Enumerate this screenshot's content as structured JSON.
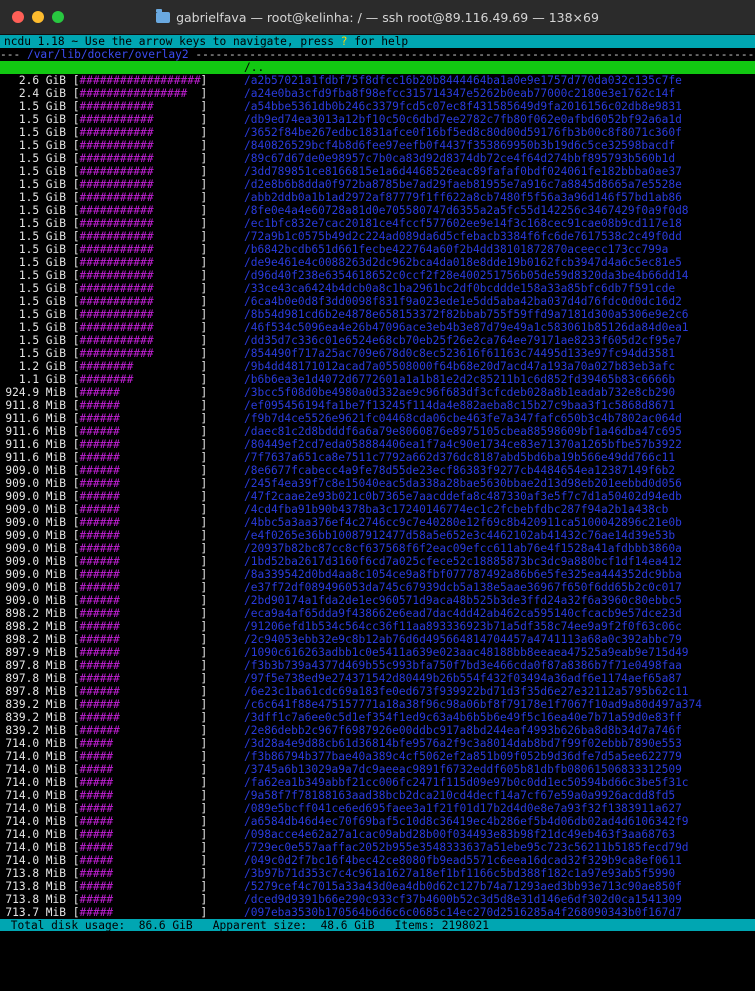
{
  "window": {
    "title": "gabrielfava — root@kelinha: / — ssh root@89.116.49.69 — 138×69"
  },
  "header": {
    "prefix": "ncdu 1.18 ~ Use the arrow keys to navigate, press ",
    "help_key": "?",
    "suffix": " for help"
  },
  "pathline": {
    "prefix": "--- ",
    "path": "/var/lib/docker/overlay2",
    "suffix": " ---------------------------------------------------------------------------------------------------------------"
  },
  "parent_dir": "/..",
  "entries": [
    {
      "size": "2.6 GiB",
      "bar": "##################",
      "name": "/a2b57021a1fdbf75f8dfcc16b20b8444464ba1a0e9e1757d770da032c135c7fe"
    },
    {
      "size": "2.4 GiB",
      "bar": "################ ",
      "name": "/a24e0ba3cfd9fba8f98efcc315714347e5262b0eab77000c2180e3e1762c14f"
    },
    {
      "size": "1.5 GiB",
      "bar": "###########",
      "name": "/a54bbe5361db0b246c3379fcd5c07ec8f431585649d9fa2016156c02db8e9831"
    },
    {
      "size": "1.5 GiB",
      "bar": "###########",
      "name": "/db9ed74ea3013a12bf10c50c6dbd7ee2782c7fb80f062e0afbd6052bf92a6a1d"
    },
    {
      "size": "1.5 GiB",
      "bar": "###########",
      "name": "/3652f84be267edbc1831afce0f16bf5ed8c80d00d59176fb3b00c8f8071c360f"
    },
    {
      "size": "1.5 GiB",
      "bar": "###########",
      "name": "/840826529bcf4b8d6fee97eefb0f4437f353869950b3b19d6c5ce32598bacdf"
    },
    {
      "size": "1.5 GiB",
      "bar": "###########",
      "name": "/89c67d67de0e98957c7b0ca83d92d8374db72ce4f64d274bbf895793b560b1d"
    },
    {
      "size": "1.5 GiB",
      "bar": "###########",
      "name": "/3dd789851ce8166815e1a6d4468526eac89fafaf0bdf024061fe182bbba0ae37"
    },
    {
      "size": "1.5 GiB",
      "bar": "###########",
      "name": "/d2e8b6b8dda0f972ba8785be7ad29faeb81955e7a916c7a8845d8665a7e5528e"
    },
    {
      "size": "1.5 GiB",
      "bar": "###########",
      "name": "/abb2ddb0a1b1ad2972af87779f1ff622a8cb7480f5f56a3a96d146f57bd1ab86"
    },
    {
      "size": "1.5 GiB",
      "bar": "###########",
      "name": "/8fe0e4a4e60728a81d0e705580747d6355a2a5fc55d142256c3467429f0a9f0d8"
    },
    {
      "size": "1.5 GiB",
      "bar": "###########",
      "name": "/ec1bfc832e7cac20181ce4fccf577602ee9e14f3c168cec91cae08b9cd117e18"
    },
    {
      "size": "1.5 GiB",
      "bar": "###########",
      "name": "/72a9b1c0575b49d2c224ad089da6d5cfebacb3384f6fc6de7617538c2c49f0dd"
    },
    {
      "size": "1.5 GiB",
      "bar": "###########",
      "name": "/b6842bcdb651d661fecbe422764a60f2b4dd38101872870aceecc173cc799a"
    },
    {
      "size": "1.5 GiB",
      "bar": "###########",
      "name": "/de9e461e4c0088263d2dc962bca4da018e8dde19b0162fcb3947d4a6c5ec81e5"
    },
    {
      "size": "1.5 GiB",
      "bar": "###########",
      "name": "/d96d40f238e6354618652c0ccf2f28e400251756b05de59d8320da3be4b66dd14"
    },
    {
      "size": "1.5 GiB",
      "bar": "###########",
      "name": "/33ce43ca6424b4dcb0a8c1ba2961bc2df0bcddde158a33a85bfc6db7f591cde"
    },
    {
      "size": "1.5 GiB",
      "bar": "###########",
      "name": "/6ca4b0e0d8f3dd0098f831f9a023ede1e5dd5aba42ba037d4d76fdc0d0dc16d2"
    },
    {
      "size": "1.5 GiB",
      "bar": "###########",
      "name": "/8b54d981cd6b2e4878e658153372f82bbab755f59ffd9a7181d300a5306e9e2c6"
    },
    {
      "size": "1.5 GiB",
      "bar": "###########",
      "name": "/46f534c5096ea4e26b47096ace3eb4b3e87d79e49a1c583061b85126da84d0ea1"
    },
    {
      "size": "1.5 GiB",
      "bar": "###########",
      "name": "/dd35d7c336c01e6524e68cb70eb25f26e2ca764ee79171ae8233f605d2cf95e7"
    },
    {
      "size": "1.5 GiB",
      "bar": "###########",
      "name": "/854490f717a25ac709e678d0c8ec523616f61163c74495d133e97fc94dd3581"
    },
    {
      "size": "1.2 GiB",
      "bar": "########",
      "name": "/9b4dd48171012acad7a05508000f64b68e20d7acd47a193a70a027b83eb3afc"
    },
    {
      "size": "1.1 GiB",
      "bar": "########",
      "name": "/b6b6ea3e1d4072d6772601a1a1b81e2d2c85211b1c6d852fd39465b83c6666b"
    },
    {
      "size": "924.9 MiB",
      "bar": "######",
      "name": "/3bcc5f08d0be4980a0d332ae9c96f683df3cfcdeb028a8b1eadab732e8cb290"
    },
    {
      "size": "911.8 MiB",
      "bar": "######",
      "name": "/ef095456194fa1be7f13245f114da4e882aeba8c15b27c9baa3f1c5868d8671"
    },
    {
      "size": "911.6 MiB",
      "bar": "######",
      "name": "/f9b7d4ce5526e9621fc04468cda06cbe463fe7a347fafc650b3c4b7802ac064d"
    },
    {
      "size": "911.6 MiB",
      "bar": "######",
      "name": "/daec81c2d8bdddf6a6a79e8060876e8975105cbea88598609bf1a46dba47c695"
    },
    {
      "size": "911.6 MiB",
      "bar": "######",
      "name": "/80449ef2cd7eda058884406ea1f7a4c90e1734ce83e71370a1265bfbe57b3922"
    },
    {
      "size": "911.6 MiB",
      "bar": "######",
      "name": "/7f7637a651ca8e7511c7792a662d376dc8187abd5bd6ba19b566e49dd766c11"
    },
    {
      "size": "909.0 MiB",
      "bar": "######",
      "name": "/8e6677fcabecc4a9fe78d55de23ecf86383f9277cb4484654ea12387149f6b2"
    },
    {
      "size": "909.0 MiB",
      "bar": "######",
      "name": "/245f4ea39f7c8e15040eac5da338a28bae5630bbae2d13d98eb201eebbd0d056"
    },
    {
      "size": "909.0 MiB",
      "bar": "######",
      "name": "/47f2caae2e93b021c0b7365e7aacddefa8c487330af3e5f7c7d1a50402d94edb"
    },
    {
      "size": "909.0 MiB",
      "bar": "######",
      "name": "/4cd4fba91b90b4378ba3c17240146774ec1c2fcbebfdbc287f94a2b1a438cb"
    },
    {
      "size": "909.0 MiB",
      "bar": "######",
      "name": "/4bbc5a3aa376ef4c2746cc9c7e40280e12f69c8b420911ca5100042896c21e0b"
    },
    {
      "size": "909.0 MiB",
      "bar": "######",
      "name": "/e4f0265e36bb10087912477d58a5e652e3c4462102ab41432c76ae14d39e53b"
    },
    {
      "size": "909.0 MiB",
      "bar": "######",
      "name": "/20937b82bc87cc8cf637568f6f2eac09efcc611ab76e4f1528a41afdbbb3860a"
    },
    {
      "size": "909.0 MiB",
      "bar": "######",
      "name": "/1bd52ba2617d3160f6cd7a025cfece52c18885873bc3dc9a880bcf1df14ea412"
    },
    {
      "size": "909.0 MiB",
      "bar": "######",
      "name": "/8a339542d0bd4aa8c1054ce9a8fbf077787492a86b6e5fe325ea444352dc9bba"
    },
    {
      "size": "909.0 MiB",
      "bar": "######",
      "name": "/e37f72df089496053da745c67939dcb5a138e5aae36967f650f6dd65b2c0c017"
    },
    {
      "size": "909.0 MiB",
      "bar": "######",
      "name": "/2bd90174a1fda2de1ec960571d9aca48b525b3de3ffd24a32f6a3960c80ebbc5"
    },
    {
      "size": "898.2 MiB",
      "bar": "######",
      "name": "/eca9a4af65dda9f438662e6ead7dac4dd42ab462ca595140cfcacb9e57dce23d"
    },
    {
      "size": "898.2 MiB",
      "bar": "######",
      "name": "/91206efd1b534c564cc36f11aa893336923b71a5df358c74ee9a9f2f0f63c06c"
    },
    {
      "size": "898.2 MiB",
      "bar": "######",
      "name": "/2c94053ebb32e9c8b12ab76d6d495664814704457a4741113a68a0c392abbc79"
    },
    {
      "size": "897.9 MiB",
      "bar": "######",
      "name": "/1090c616263adbb1c0e5411a639e023aac48188bb8eeaea47525a9eab9e715d49"
    },
    {
      "size": "897.8 MiB",
      "bar": "######",
      "name": "/f3b3b739a4377d469b55c993bfa750f7bd3e466cda0f87a8386b7f71e0498faa"
    },
    {
      "size": "897.8 MiB",
      "bar": "######",
      "name": "/97f5e738ed9e274371542d80449b26b554f432f03494a36adf6e1174aef65a87"
    },
    {
      "size": "897.8 MiB",
      "bar": "######",
      "name": "/6e23c1ba61cdc69a183fe0ed673f939922bd71d3f35d6e27e32112a5795b62c11"
    },
    {
      "size": "839.2 MiB",
      "bar": "######",
      "name": "/c6c641f88e475157771a18a38f96c98a06bf8f79178e1f7067f10ad9a80d497a374"
    },
    {
      "size": "839.2 MiB",
      "bar": "######",
      "name": "/3dff1c7a6ee0c5d1ef354f1ed9c63a4b6b5b6e49f5c16ea40e7b71a59d0e83ff"
    },
    {
      "size": "839.2 MiB",
      "bar": "######",
      "name": "/2e86debb2c967f6987926e00ddbc917a8bd244eaf4993b626ba8d8b34d7a746f"
    },
    {
      "size": "714.0 MiB",
      "bar": "#####",
      "name": "/3d28a4e9d88cb61d36814bfe9576a2f9c3a8014dab8bd7f99f02ebbb7890e553"
    },
    {
      "size": "714.0 MiB",
      "bar": "#####",
      "name": "/f3b86794b377bae40a389c4cf5062ef2a851b09f052b9d36dfe7d5a5ee622779"
    },
    {
      "size": "714.0 MiB",
      "bar": "#####",
      "name": "/3745a6b13029a9a7dc9aeeac9891f6732eddf605b81dbfb08061506833312509"
    },
    {
      "size": "714.0 MiB",
      "bar": "#####",
      "name": "/fa62ea1b349abbf21cc006fc2471f115d09e97b0c0dd1ec50594bd66c3be5f31c"
    },
    {
      "size": "714.0 MiB",
      "bar": "#####",
      "name": "/9a58f7f78188163aad38bcb2dca210cd4decf14a7cf67e59a0a9926acdd8fd5"
    },
    {
      "size": "714.0 MiB",
      "bar": "#####",
      "name": "/089e5bcff041ce6ed695faee3a1f21f01d17b2d4d0e8e7a93f32f1383911a627"
    },
    {
      "size": "714.0 MiB",
      "bar": "#####",
      "name": "/a6584db46d4ec70f69baf5c10d8c36419ec4b286ef5b4d06db02ad4d6106342f9"
    },
    {
      "size": "714.0 MiB",
      "bar": "#####",
      "name": "/098acce4e62a27a1cac09abd28b00f034493e83b98f21dc49eb463f3aa68763"
    },
    {
      "size": "714.0 MiB",
      "bar": "#####",
      "name": "/729ec0e557aaffac2052b955e3548333637a51ebe95c723c56211b5185fecd79d"
    },
    {
      "size": "714.0 MiB",
      "bar": "#####",
      "name": "/049c0d2f7bc16f4bec42ce8080fb9ead5571c6eea16dcad32f329b9ca8ef0611"
    },
    {
      "size": "713.8 MiB",
      "bar": "#####",
      "name": "/3b97b71d353c7c4c961a1627a18ef1bf1166c5bd388f182c1a97e93ab5f5990"
    },
    {
      "size": "713.8 MiB",
      "bar": "#####",
      "name": "/5279cef4c7015a33a43d0ea4db0d62c127b74a71293aed3bb93e713c90ae850f"
    },
    {
      "size": "713.8 MiB",
      "bar": "#####",
      "name": "/dced9d9391b66e290c933cf37b4600b52c3d5d8e31d146e6df302d0ca1541309"
    },
    {
      "size": "713.7 MiB",
      "bar": "#####",
      "name": "/097eba3530b170564b6d6c6c0685c14ec270d2516285a4f268090343b0f167d7"
    }
  ],
  "status": {
    "text": " Total disk usage:  86.6 GiB   Apparent size:  48.6 GiB   Items: 2198021"
  },
  "colors": {
    "header_bg": "#00a6b2",
    "selected_bg": "#12c812",
    "bar": "#c21fd6",
    "name": "#2a3bdd"
  }
}
